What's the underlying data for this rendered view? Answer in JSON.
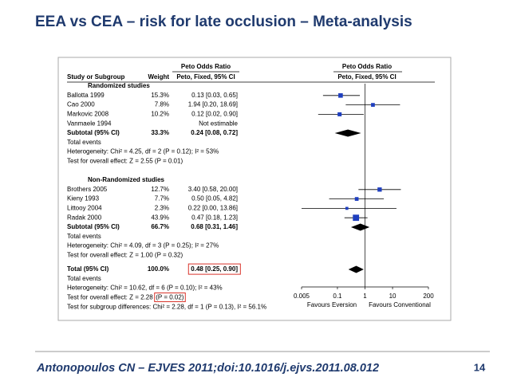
{
  "header": {
    "title": "EEA vs CEA – risk for late occlusion – Meta-analysis"
  },
  "footer": {
    "citation": "Antonopoulos CN – EJVES 2011;doi:10.1016/j.ejvs.2011.08.012",
    "page": "14"
  },
  "chart_data": {
    "type": "forest",
    "column_group": "Peto Odds Ratio",
    "columns": {
      "study": "Study or Subgroup",
      "weight": "Weight",
      "ci": "Peto, Fixed, 95% CI"
    },
    "groups": [
      {
        "title": "Randomized studies",
        "studies": [
          "Ballotta 1999",
          "Cao 2000",
          "Markovic 2008",
          "Vanmaele 1994"
        ],
        "weights": [
          15.3,
          7.8,
          10.2,
          null
        ],
        "weight_labels": [
          "15.3%",
          "7.8%",
          "10.2%",
          null
        ],
        "or": [
          0.13,
          1.94,
          0.12,
          null
        ],
        "lo": [
          0.03,
          0.2,
          0.02,
          null
        ],
        "hi": [
          0.65,
          18.69,
          0.9,
          null
        ],
        "value_labels": [
          "0.13 [0.03, 0.65]",
          "1.94 [0.20, 18.69]",
          "0.12 [0.02, 0.90]",
          "Not estimable"
        ],
        "subtotal": {
          "label": "Subtotal (95% CI)",
          "weight": 33.3,
          "weight_label": "33.3%",
          "or": 0.24,
          "lo": 0.08,
          "hi": 0.72,
          "value_label": "0.24 [0.08, 0.72]"
        },
        "notes": [
          "Total events",
          "Heterogeneity: Chi² = 4.25, df = 2 (P = 0.12); I² = 53%",
          "Test for overall effect: Z = 2.55 (P = 0.01)"
        ]
      },
      {
        "title": "Non-Randomized studies",
        "studies": [
          "Brothers 2005",
          "Kieny 1993",
          "Littooy 2004",
          "Radak 2000"
        ],
        "weights": [
          12.7,
          7.7,
          2.3,
          43.9
        ],
        "weight_labels": [
          "12.7%",
          "7.7%",
          "2.3%",
          "43.9%"
        ],
        "or": [
          3.4,
          0.5,
          0.22,
          0.47
        ],
        "lo": [
          0.58,
          0.05,
          0,
          0.18
        ],
        "hi": [
          20,
          4.82,
          13.86,
          1.23
        ],
        "value_labels": [
          "3.40 [0.58, 20.00]",
          "0.50 [0.05, 4.82]",
          "0.22 [0.00, 13.86]",
          "0.47 [0.18, 1.23]"
        ],
        "subtotal": {
          "label": "Subtotal (95% CI)",
          "weight": 66.7,
          "weight_label": "66.7%",
          "or": 0.68,
          "lo": 0.31,
          "hi": 1.46,
          "value_label": "0.68 [0.31, 1.46]"
        },
        "notes": [
          "Total events",
          "Heterogeneity: Chi² = 4.09, df = 3 (P = 0.25); I² = 27%",
          "Test for overall effect: Z = 1.00 (P = 0.32)"
        ]
      }
    ],
    "total": {
      "label": "Total (95% CI)",
      "weight": 100,
      "weight_label": "100.0%",
      "or": 0.48,
      "lo": 0.25,
      "hi": 0.9,
      "value_label": "0.48 [0.25, 0.90]",
      "notes": [
        "Total events",
        "Heterogeneity: Chi² = 10.62, df = 6 (P = 0.10); I² = 43%",
        "Test for overall effect: Z = 2.28",
        "Test for subgroup differences: Chi² = 2.28, df = 1 (P = 0.13), I² = 56.1%"
      ],
      "highlight": "(P = 0.02)"
    },
    "xscale": "log",
    "xlim": [
      0.005,
      200
    ],
    "xticks": [
      0.005,
      0.1,
      1,
      10,
      200
    ],
    "xlabels": [
      "Favours Eversion",
      "Favours Conventional"
    ],
    "marker_color": "#1f3fbf",
    "highlight_color": "#d9342b"
  }
}
